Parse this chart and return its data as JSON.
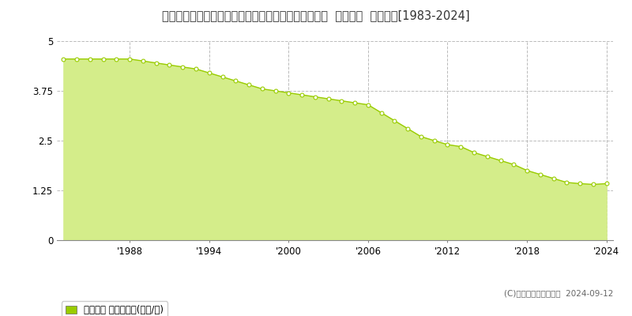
{
  "title": "青森県南津軽郡田舎館村大字大根子字村立６０番１外  地価公示  地価推移[1983-2024]",
  "years": [
    1983,
    1984,
    1985,
    1986,
    1987,
    1988,
    1989,
    1990,
    1991,
    1992,
    1993,
    1994,
    1995,
    1996,
    1997,
    1998,
    1999,
    2000,
    2001,
    2002,
    2003,
    2004,
    2005,
    2006,
    2007,
    2008,
    2009,
    2010,
    2011,
    2012,
    2013,
    2014,
    2015,
    2016,
    2017,
    2018,
    2019,
    2020,
    2021,
    2022,
    2023,
    2024
  ],
  "values": [
    4.55,
    4.55,
    4.55,
    4.55,
    4.55,
    4.55,
    4.5,
    4.45,
    4.4,
    4.35,
    4.3,
    4.2,
    4.1,
    4.0,
    3.9,
    3.8,
    3.75,
    3.7,
    3.65,
    3.6,
    3.55,
    3.5,
    3.45,
    3.4,
    3.2,
    3.0,
    2.8,
    2.6,
    2.5,
    2.4,
    2.35,
    2.2,
    2.1,
    2.0,
    1.9,
    1.75,
    1.65,
    1.55,
    1.45,
    1.42,
    1.4,
    1.42
  ],
  "line_color": "#99cc00",
  "fill_color": "#d4ed8a",
  "marker_color": "#ffffff",
  "marker_edge_color": "#99cc00",
  "ylim": [
    0,
    5
  ],
  "yticks": [
    0,
    1.25,
    2.5,
    3.75,
    5
  ],
  "xlim_min": 1983,
  "xlim_max": 2024,
  "xticks": [
    1988,
    1994,
    2000,
    2006,
    2012,
    2018,
    2024
  ],
  "xtick_labels": [
    "'1988",
    "'1994",
    "'2000",
    "'2006",
    "'2012",
    "'2018",
    "'2024"
  ],
  "grid_color": "#bbbbbb",
  "bg_color": "#ffffff",
  "plot_bg_color": "#ffffff",
  "legend_label": "地価公示 平均坪単価(万円/坪)",
  "copyright_text": "(C)土地価格ドットコム  2024-09-12",
  "title_fontsize": 10.5,
  "axis_fontsize": 8.5,
  "legend_fontsize": 8.5,
  "copyright_fontsize": 7.5
}
